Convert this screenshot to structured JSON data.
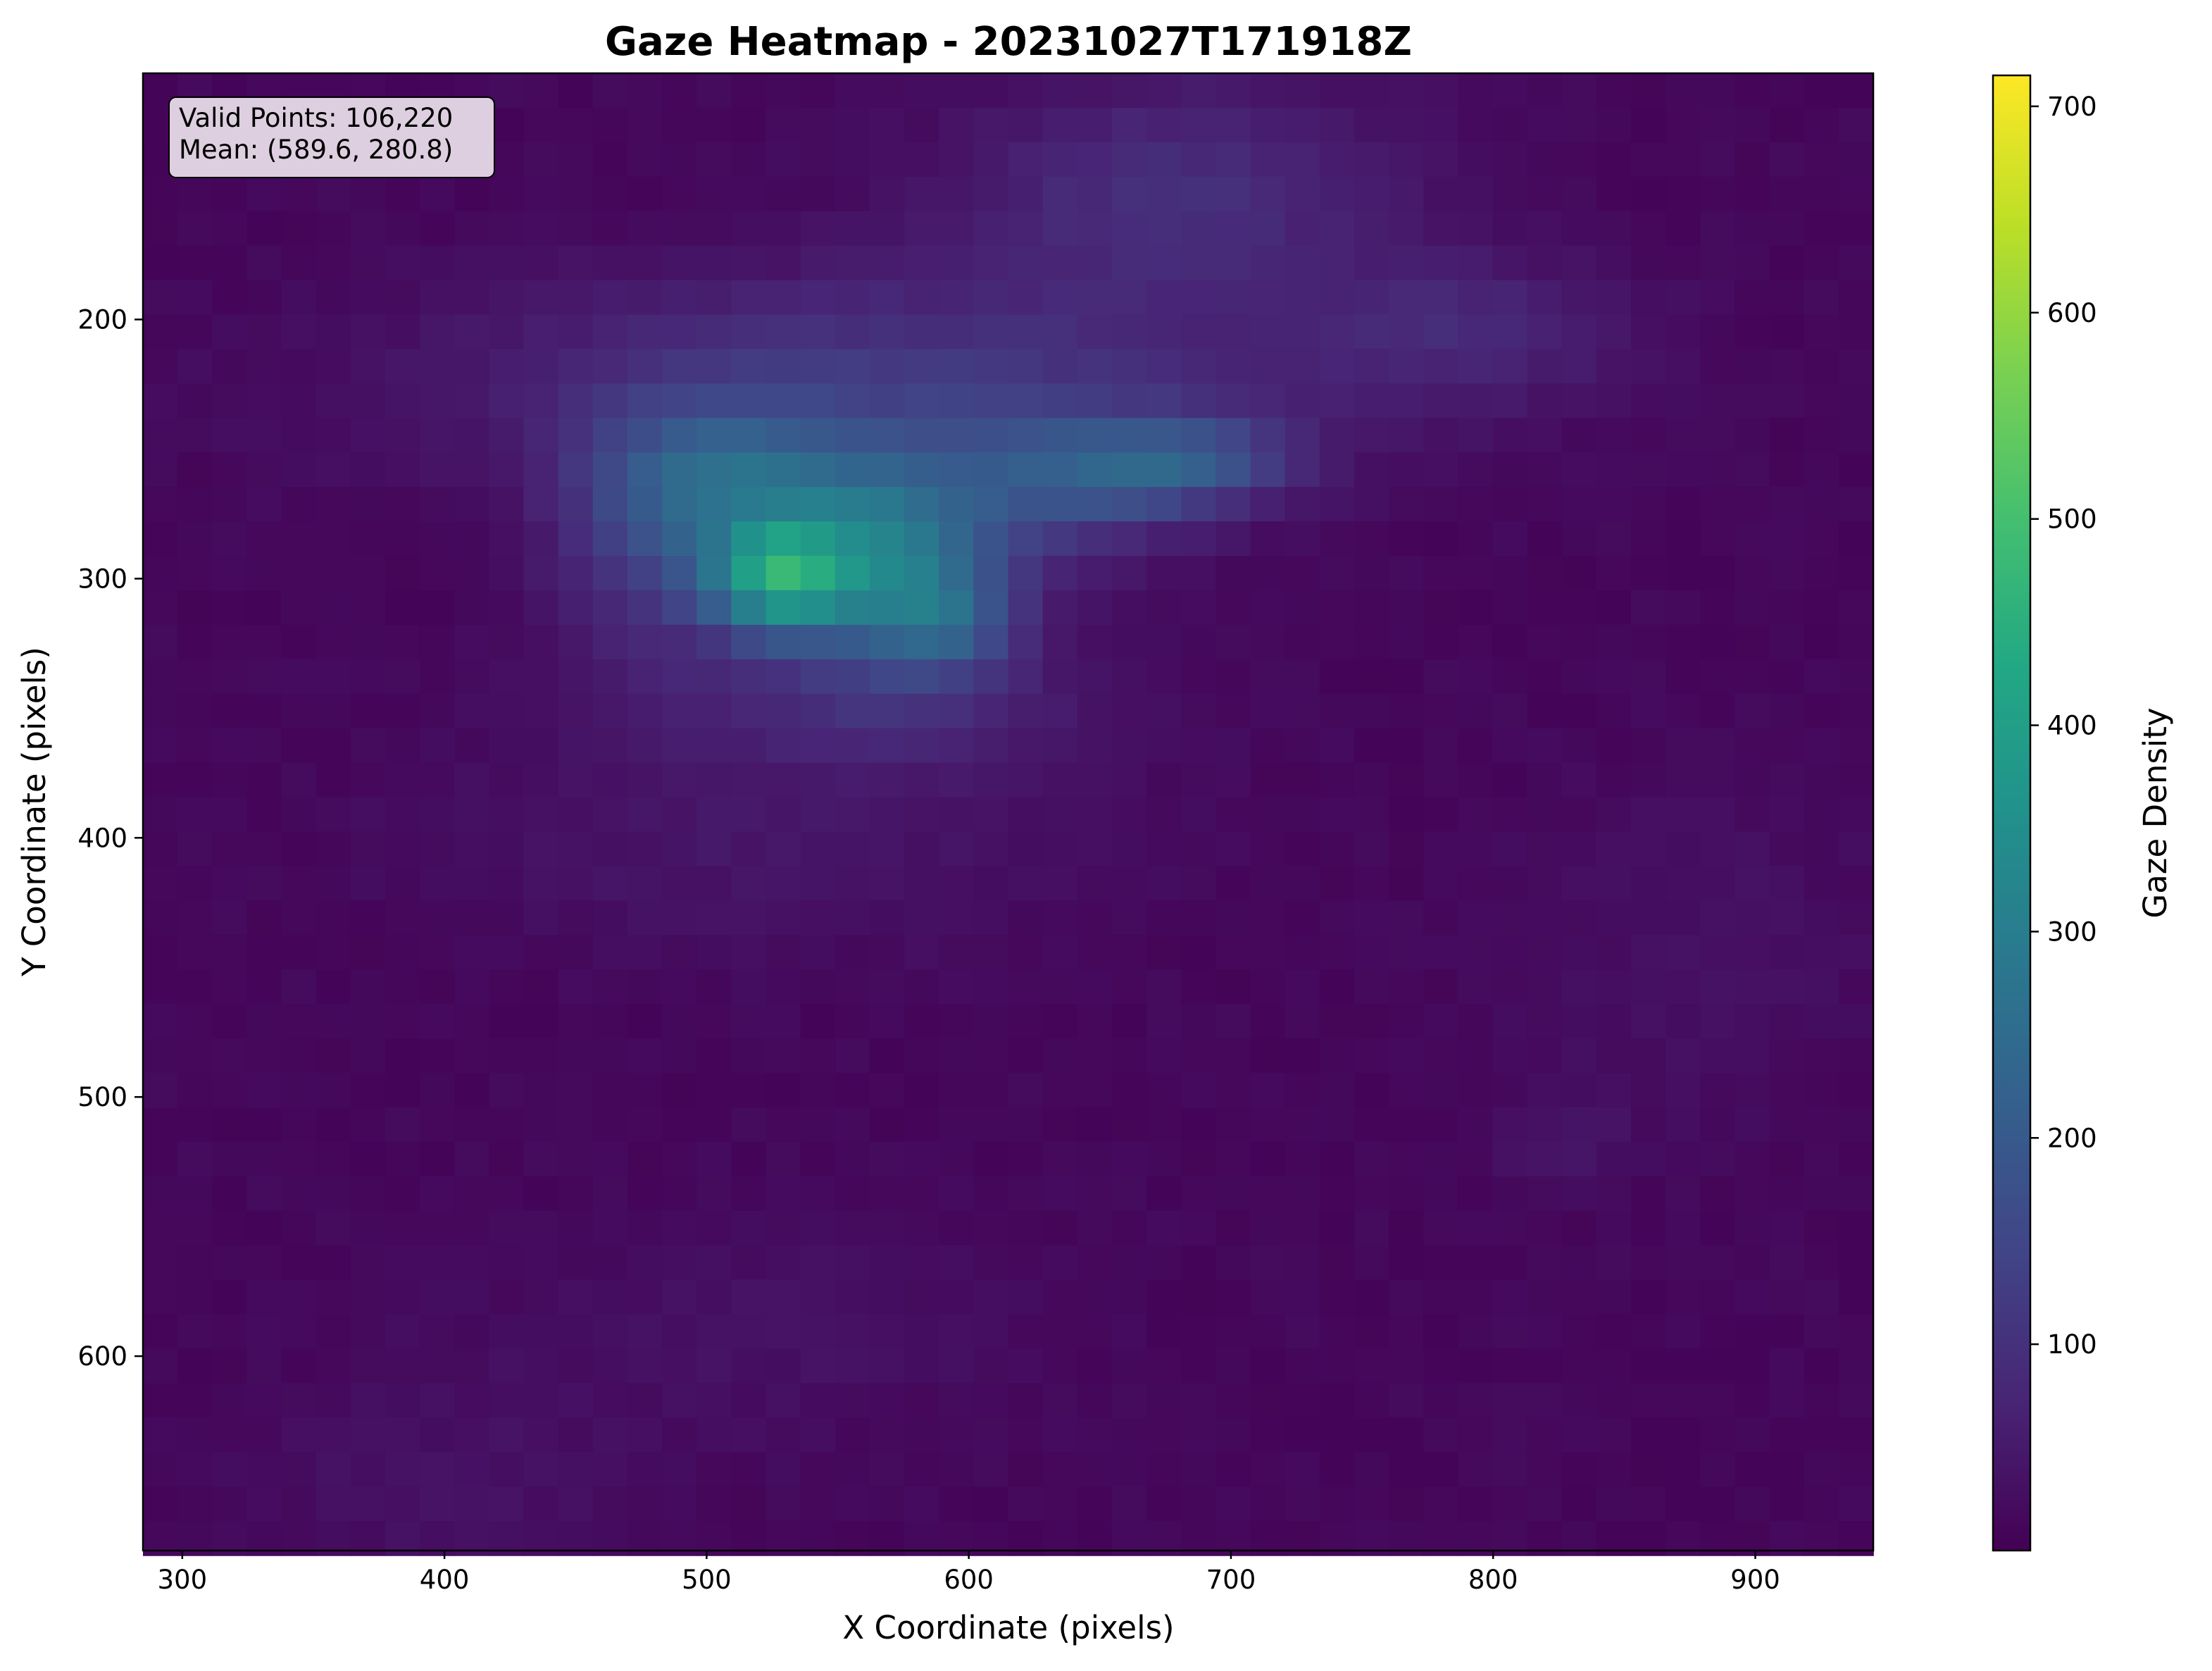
{
  "chart_data": {
    "type": "heatmap",
    "title": "Gaze Heatmap - 20231027T171918Z",
    "xlabel": "X Coordinate (pixels)",
    "ylabel": "Y Coordinate (pixels)",
    "colorbar_label": "Gaze Density",
    "colormap": "viridis",
    "y_inverted": true,
    "xlim": [
      285,
      945
    ],
    "ylim": [
      105,
      675
    ],
    "vlim": [
      0,
      715
    ],
    "x_ticks": [
      "300",
      "400",
      "500",
      "600",
      "700",
      "800",
      "900"
    ],
    "y_ticks": [
      "200",
      "300",
      "400",
      "500",
      "600"
    ],
    "colorbar_ticks": [
      "100",
      "200",
      "300",
      "400",
      "500",
      "600",
      "700"
    ],
    "grid": false,
    "stats": {
      "valid_points": "Valid Points: 106,220",
      "mean": "Mean: (589.6, 280.8)"
    },
    "grid_bins": {
      "x_start": 285,
      "x_step": 13.2,
      "nx": 50,
      "y_start": 105,
      "y_step": 13.3,
      "ny": 43
    },
    "blobs": [
      {
        "x": 527,
        "y": 300,
        "sx": 20,
        "sy": 15,
        "peak": 320
      },
      {
        "x": 565,
        "y": 290,
        "sx": 30,
        "sy": 25,
        "peak": 230
      },
      {
        "x": 590,
        "y": 315,
        "sx": 20,
        "sy": 15,
        "peak": 150
      },
      {
        "x": 510,
        "y": 262,
        "sx": 30,
        "sy": 20,
        "peak": 160
      },
      {
        "x": 475,
        "y": 285,
        "sx": 25,
        "sy": 30,
        "peak": 100
      },
      {
        "x": 680,
        "y": 255,
        "sx": 30,
        "sy": 12,
        "peak": 140
      },
      {
        "x": 630,
        "y": 265,
        "sx": 40,
        "sy": 20,
        "peak": 120
      },
      {
        "x": 565,
        "y": 225,
        "sx": 110,
        "sy": 30,
        "peak": 100
      },
      {
        "x": 680,
        "y": 150,
        "sx": 60,
        "sy": 30,
        "peak": 80
      },
      {
        "x": 790,
        "y": 205,
        "sx": 45,
        "sy": 20,
        "peak": 60
      },
      {
        "x": 560,
        "y": 345,
        "sx": 60,
        "sy": 20,
        "peak": 70
      },
      {
        "x": 520,
        "y": 400,
        "sx": 90,
        "sy": 30,
        "peak": 30
      },
      {
        "x": 825,
        "y": 515,
        "sx": 20,
        "sy": 15,
        "peak": 25
      },
      {
        "x": 880,
        "y": 440,
        "sx": 45,
        "sy": 45,
        "peak": 20
      },
      {
        "x": 520,
        "y": 590,
        "sx": 70,
        "sy": 30,
        "peak": 20
      },
      {
        "x": 400,
        "y": 650,
        "sx": 50,
        "sy": 30,
        "peak": 20
      }
    ]
  }
}
